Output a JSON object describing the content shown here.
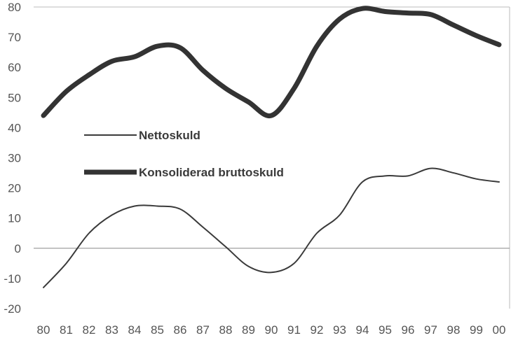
{
  "chart_data": {
    "type": "line",
    "title": "",
    "xlabel": "",
    "ylabel": "",
    "categories": [
      "80",
      "81",
      "82",
      "83",
      "84",
      "85",
      "86",
      "87",
      "88",
      "89",
      "90",
      "91",
      "92",
      "93",
      "94",
      "95",
      "96",
      "97",
      "98",
      "99",
      "00"
    ],
    "ylim": [
      -20,
      80
    ],
    "yticks": [
      80,
      70,
      60,
      50,
      40,
      30,
      20,
      10,
      0,
      -10,
      -20
    ],
    "grid": false,
    "zero_line": true,
    "legend_placement": "center-left",
    "series": [
      {
        "name": "Nettoskuld",
        "style": "thin",
        "color": "#3a3a3a",
        "values": [
          -13,
          -5,
          5,
          11,
          14,
          14,
          13,
          7,
          0.5,
          -6,
          -8,
          -5,
          5,
          11,
          22,
          24,
          24,
          26.5,
          25,
          23,
          22
        ]
      },
      {
        "name": "Konsoliderad bruttoskuld",
        "style": "thick",
        "color": "#333333",
        "values": [
          44,
          52,
          57.5,
          62,
          63.5,
          67,
          66.5,
          59,
          53,
          48.5,
          44,
          53,
          67,
          76,
          79.5,
          78.5,
          78,
          77.5,
          74,
          70.5,
          67.5
        ]
      }
    ]
  }
}
